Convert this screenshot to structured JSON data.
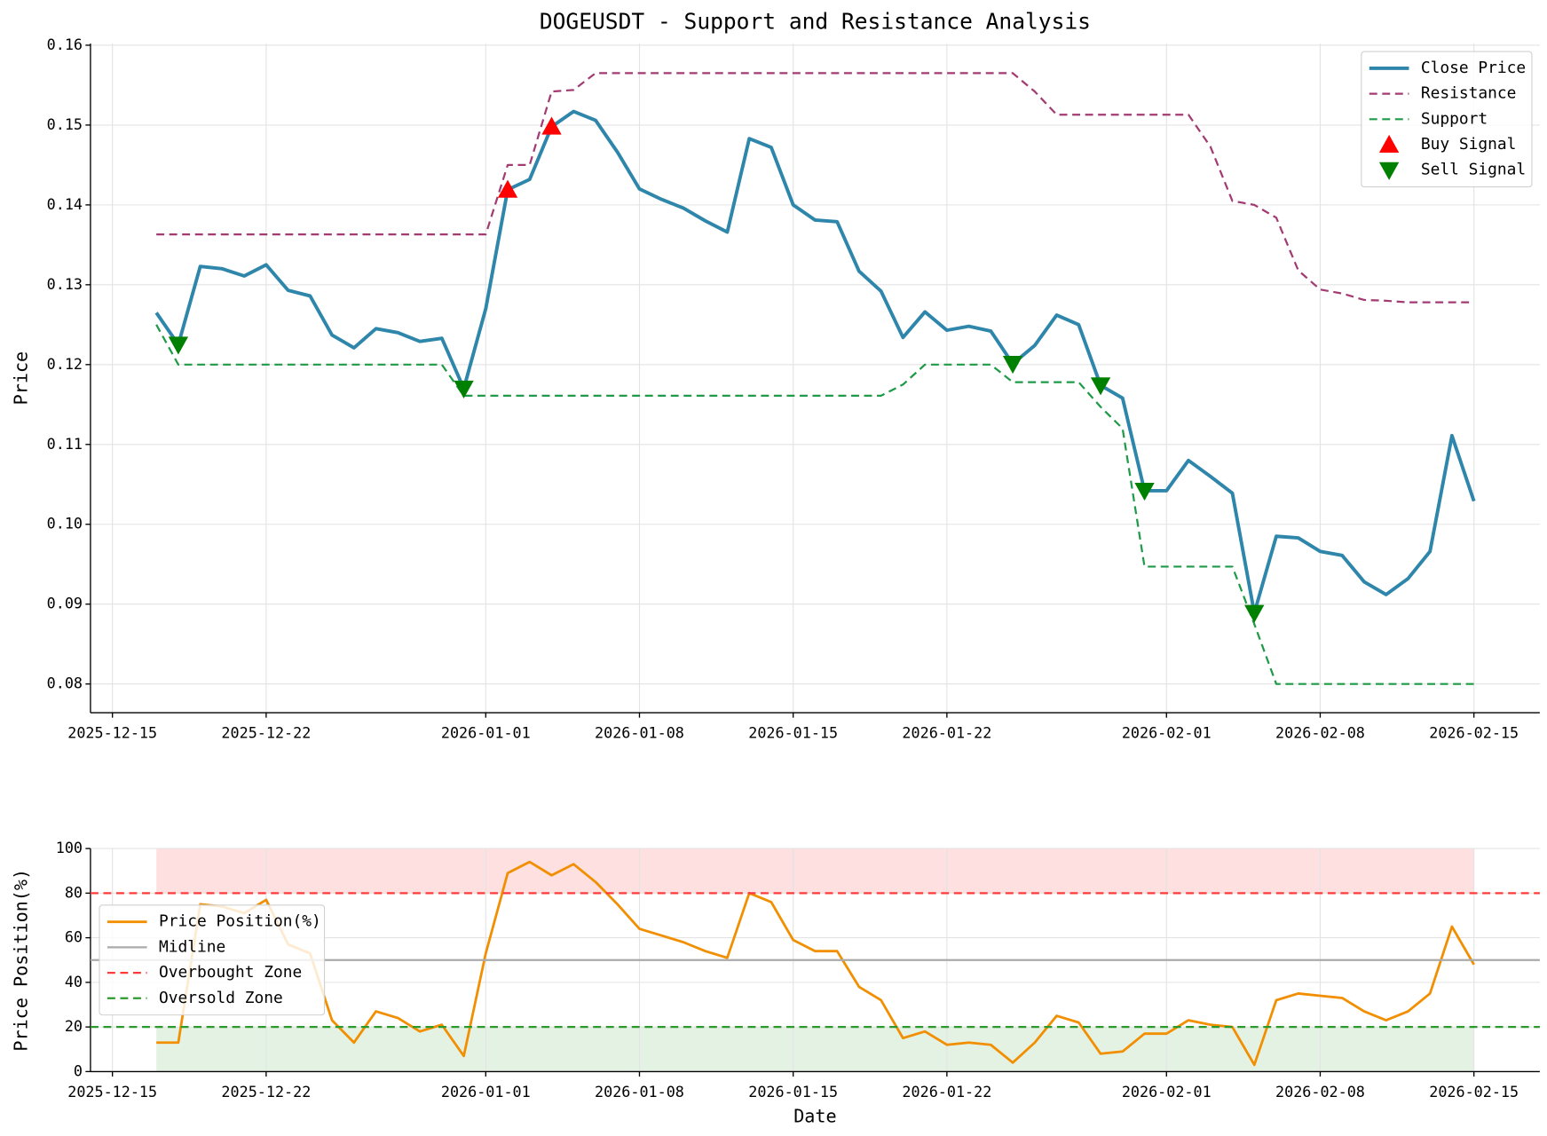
{
  "chart_data": [
    {
      "type": "line",
      "title": "DOGEUSDT - Support and Resistance Analysis",
      "ylabel": "Price",
      "x": [
        "2025-12-17",
        "2025-12-18",
        "2025-12-19",
        "2025-12-20",
        "2025-12-21",
        "2025-12-22",
        "2025-12-23",
        "2025-12-24",
        "2025-12-25",
        "2025-12-26",
        "2025-12-27",
        "2025-12-28",
        "2025-12-29",
        "2025-12-30",
        "2025-12-31",
        "2026-01-01",
        "2026-01-02",
        "2026-01-03",
        "2026-01-04",
        "2026-01-05",
        "2026-01-06",
        "2026-01-07",
        "2026-01-08",
        "2026-01-09",
        "2026-01-10",
        "2026-01-11",
        "2026-01-12",
        "2026-01-13",
        "2026-01-14",
        "2026-01-15",
        "2026-01-16",
        "2026-01-17",
        "2026-01-18",
        "2026-01-19",
        "2026-01-20",
        "2026-01-21",
        "2026-01-22",
        "2026-01-23",
        "2026-01-24",
        "2026-01-25",
        "2026-01-26",
        "2026-01-27",
        "2026-01-28",
        "2026-01-29",
        "2026-01-30",
        "2026-01-31",
        "2026-02-01",
        "2026-02-02",
        "2026-02-03",
        "2026-02-04",
        "2026-02-05",
        "2026-02-06",
        "2026-02-07",
        "2026-02-08",
        "2026-02-09",
        "2026-02-10",
        "2026-02-11",
        "2026-02-12",
        "2026-02-13",
        "2026-02-14",
        "2026-02-15"
      ],
      "series": [
        {
          "name": "Close Price",
          "color": "#2e86ab",
          "width": 3.5,
          "dash": false,
          "values": [
            0.1265,
            0.1225,
            0.1323,
            0.132,
            0.1311,
            0.1325,
            0.1293,
            0.1286,
            0.1237,
            0.1221,
            0.1245,
            0.124,
            0.1229,
            0.1233,
            0.117,
            0.127,
            0.1419,
            0.1432,
            0.1498,
            0.1517,
            0.1506,
            0.1466,
            0.142,
            0.1407,
            0.1396,
            0.138,
            0.1366,
            0.1483,
            0.1472,
            0.14,
            0.1381,
            0.1379,
            0.1317,
            0.1292,
            0.1234,
            0.1266,
            0.1243,
            0.1248,
            0.1242,
            0.1201,
            0.1224,
            0.1262,
            0.125,
            0.1174,
            0.1158,
            0.1042,
            0.1042,
            0.108,
            0.106,
            0.1039,
            0.0889,
            0.0985,
            0.0983,
            0.0966,
            0.0961,
            0.0928,
            0.0912,
            0.0932,
            0.0966,
            0.1111,
            0.1029
          ]
        },
        {
          "name": "Resistance",
          "color": "#a23b72",
          "width": 2,
          "dash": true,
          "values": [
            0.1363,
            0.1363,
            0.1363,
            0.1363,
            0.1363,
            0.1363,
            0.1363,
            0.1363,
            0.1363,
            0.1363,
            0.1363,
            0.1363,
            0.1363,
            0.1363,
            0.1363,
            0.1363,
            0.145,
            0.145,
            0.1542,
            0.1544,
            0.1565,
            0.1565,
            0.1565,
            0.1565,
            0.1565,
            0.1565,
            0.1565,
            0.1565,
            0.1565,
            0.1565,
            0.1565,
            0.1565,
            0.1565,
            0.1565,
            0.1565,
            0.1565,
            0.1565,
            0.1565,
            0.1565,
            0.1565,
            0.1542,
            0.1513,
            0.1513,
            0.1513,
            0.1513,
            0.1513,
            0.1513,
            0.1513,
            0.1473,
            0.1405,
            0.14,
            0.1384,
            0.1318,
            0.1294,
            0.1289,
            0.1281,
            0.128,
            0.1278,
            0.1278,
            0.1278,
            0.1278
          ]
        },
        {
          "name": "Support",
          "color": "#1e9a48",
          "width": 2,
          "dash": true,
          "values": [
            0.125,
            0.12,
            0.12,
            0.12,
            0.12,
            0.12,
            0.12,
            0.12,
            0.12,
            0.12,
            0.12,
            0.12,
            0.12,
            0.12,
            0.1161,
            0.1161,
            0.1161,
            0.1161,
            0.1161,
            0.1161,
            0.1161,
            0.1161,
            0.1161,
            0.1161,
            0.1161,
            0.1161,
            0.1161,
            0.1161,
            0.1161,
            0.1161,
            0.1161,
            0.1161,
            0.1161,
            0.1161,
            0.1175,
            0.12,
            0.12,
            0.12,
            0.12,
            0.1178,
            0.1178,
            0.1178,
            0.1178,
            0.1147,
            0.112,
            0.0947,
            0.0947,
            0.0947,
            0.0947,
            0.0947,
            0.0875,
            0.08,
            0.08,
            0.08,
            0.08,
            0.08,
            0.08,
            0.08,
            0.08,
            0.08,
            0.08
          ]
        },
        {
          "name": "Buy Signal",
          "type": "scatter",
          "marker": "^",
          "color": "#ff0000",
          "x": [
            "2026-01-02",
            "2026-01-04"
          ],
          "values": [
            0.1419,
            0.1498
          ]
        },
        {
          "name": "Sell Signal",
          "type": "scatter",
          "marker": "v",
          "color": "#008000",
          "x": [
            "2025-12-18",
            "2025-12-31",
            "2026-01-25",
            "2026-01-29",
            "2026-01-31",
            "2026-02-05"
          ],
          "values": [
            0.1225,
            0.117,
            0.1201,
            0.1174,
            0.1042,
            0.0889
          ]
        }
      ],
      "xlim": [
        "2025-12-14",
        "2026-02-18"
      ],
      "xticks": [
        "2025-12-15",
        "2025-12-22",
        "2026-01-01",
        "2026-01-08",
        "2026-01-15",
        "2026-01-22",
        "2026-02-01",
        "2026-02-08",
        "2026-02-15"
      ],
      "ylim": [
        0.0764,
        0.1602
      ],
      "yticks": [
        0.08,
        0.09,
        {
          "value": 0.1,
          "label": "0.10"
        },
        0.11,
        0.12,
        0.13,
        0.14,
        0.15,
        0.16
      ],
      "grid": true,
      "legend": "upper right"
    },
    {
      "type": "line",
      "xlabel": "Date",
      "ylabel": "Price Position(%)",
      "x": [
        "2025-12-17",
        "2025-12-18",
        "2025-12-19",
        "2025-12-20",
        "2025-12-21",
        "2025-12-22",
        "2025-12-23",
        "2025-12-24",
        "2025-12-25",
        "2025-12-26",
        "2025-12-27",
        "2025-12-28",
        "2025-12-29",
        "2025-12-30",
        "2025-12-31",
        "2026-01-01",
        "2026-01-02",
        "2026-01-03",
        "2026-01-04",
        "2026-01-05",
        "2026-01-06",
        "2026-01-07",
        "2026-01-08",
        "2026-01-09",
        "2026-01-10",
        "2026-01-11",
        "2026-01-12",
        "2026-01-13",
        "2026-01-14",
        "2026-01-15",
        "2026-01-16",
        "2026-01-17",
        "2026-01-18",
        "2026-01-19",
        "2026-01-20",
        "2026-01-21",
        "2026-01-22",
        "2026-01-23",
        "2026-01-24",
        "2026-01-25",
        "2026-01-26",
        "2026-01-27",
        "2026-01-28",
        "2026-01-29",
        "2026-01-30",
        "2026-01-31",
        "2026-02-01",
        "2026-02-02",
        "2026-02-03",
        "2026-02-04",
        "2026-02-05",
        "2026-02-06",
        "2026-02-07",
        "2026-02-08",
        "2026-02-09",
        "2026-02-10",
        "2026-02-11",
        "2026-02-12",
        "2026-02-13",
        "2026-02-14",
        "2026-02-15"
      ],
      "series": [
        {
          "name": "Price Position(%)",
          "color": "#f18f01",
          "width": 2.5,
          "dash": false,
          "values": [
            13,
            13,
            75,
            74,
            71,
            77,
            57,
            53,
            23,
            13,
            27,
            24,
            18,
            21,
            7,
            53,
            89,
            94,
            88,
            93,
            85,
            75,
            64,
            61,
            58,
            54,
            51,
            80,
            76,
            59,
            54,
            54,
            38,
            32,
            15,
            18,
            12,
            13,
            12,
            4,
            13,
            25,
            22,
            8,
            9,
            17,
            17,
            23,
            21,
            20,
            3,
            32,
            35,
            34,
            33,
            27,
            23,
            27,
            35,
            65,
            48
          ]
        },
        {
          "name": "Midline",
          "type": "hline",
          "color": "#aaaaaa",
          "width": 2,
          "dash": false,
          "value": 50
        },
        {
          "name": "Overbought Zone",
          "type": "hline",
          "color": "#ff3b3b",
          "width": 2,
          "dash": true,
          "value": 80
        },
        {
          "name": "Oversold Zone",
          "type": "hline",
          "color": "#2a9a2a",
          "width": 2,
          "dash": true,
          "value": 20
        }
      ],
      "bands": [
        {
          "range": [
            80,
            100
          ],
          "color": "#ffe0e0"
        },
        {
          "range": [
            0,
            20
          ],
          "color": "#e4f2e4"
        }
      ],
      "xlim": [
        "2025-12-14",
        "2026-02-18"
      ],
      "xticks": [
        "2025-12-15",
        "2025-12-22",
        "2026-01-01",
        "2026-01-08",
        "2026-01-15",
        "2026-01-22",
        "2026-02-01",
        "2026-02-08",
        "2026-02-15"
      ],
      "ylim": [
        0,
        100
      ],
      "yticks": [
        0,
        20,
        40,
        60,
        80,
        100
      ],
      "grid": true,
      "legend": "center left"
    }
  ]
}
